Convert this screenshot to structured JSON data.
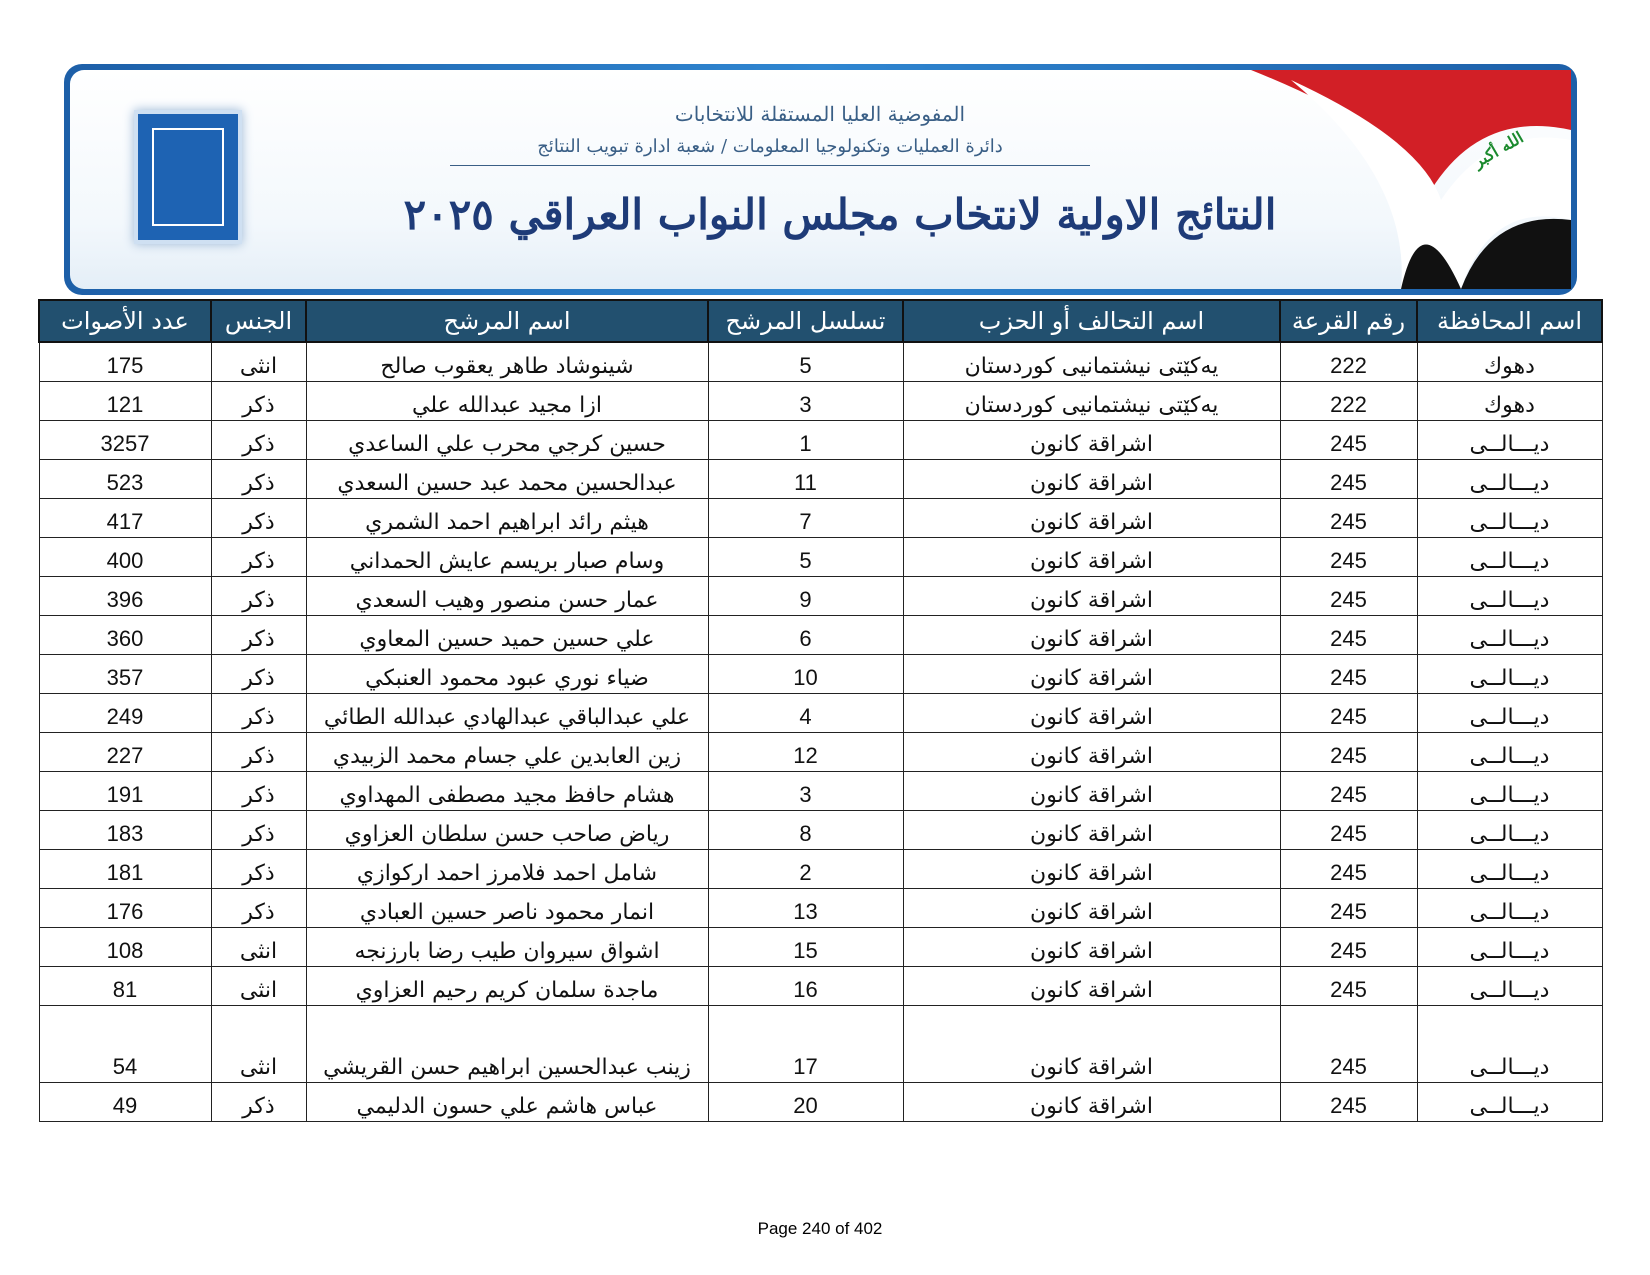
{
  "header": {
    "line1": "المفوضية العليا المستقلة للانتخابات",
    "line2": "دائرة العمليات وتكنولوجيا المعلومات / شعبة ادارة تبويب النتائج",
    "title": "النتائج الاولية لانتخاب مجلس النواب العراقي ٢٠٢٥",
    "flag_text": "الله أكبر"
  },
  "table": {
    "columns": [
      "اسم المحافظة",
      "رقم القرعة",
      "اسم التحالف أو الحزب",
      "تسلسل المرشح",
      "اسم المرشح",
      "الجنس",
      "عدد الأصوات"
    ],
    "rows": [
      [
        "دهوك",
        222,
        "يەكێتی نیشتمانیی كوردستان",
        5,
        "شينوشاد طاهر يعقوب صالح",
        "انثى",
        175
      ],
      [
        "دهوك",
        222,
        "يەكێتی نیشتمانیی كوردستان",
        3,
        "ازا مجيد عبدالله علي",
        "ذكر",
        121
      ],
      [
        "ديـــالــى",
        245,
        "اشراقة كانون",
        1,
        "حسين كرجي محرب علي الساعدي",
        "ذكر",
        3257
      ],
      [
        "ديـــالــى",
        245,
        "اشراقة كانون",
        11,
        "عبدالحسين محمد عبد حسين السعدي",
        "ذكر",
        523
      ],
      [
        "ديـــالــى",
        245,
        "اشراقة كانون",
        7,
        "هيثم رائد ابراهيم احمد الشمري",
        "ذكر",
        417
      ],
      [
        "ديـــالــى",
        245,
        "اشراقة كانون",
        5,
        "وسام صبار بريسم عايش الحمداني",
        "ذكر",
        400
      ],
      [
        "ديـــالــى",
        245,
        "اشراقة كانون",
        9,
        "عمار حسن منصور وهيب السعدي",
        "ذكر",
        396
      ],
      [
        "ديـــالــى",
        245,
        "اشراقة كانون",
        6,
        "علي حسين حميد حسين المعاوي",
        "ذكر",
        360
      ],
      [
        "ديـــالــى",
        245,
        "اشراقة كانون",
        10,
        "ضياء نوري عبود محمود العنبكي",
        "ذكر",
        357
      ],
      [
        "ديـــالــى",
        245,
        "اشراقة كانون",
        4,
        "علي عبدالباقي عبدالهادي عبدالله الطائي",
        "ذكر",
        249
      ],
      [
        "ديـــالــى",
        245,
        "اشراقة كانون",
        12,
        "زين العابدين علي جسام محمد الزبيدي",
        "ذكر",
        227
      ],
      [
        "ديـــالــى",
        245,
        "اشراقة كانون",
        3,
        "هشام حافظ مجيد مصطفى المهداوي",
        "ذكر",
        191
      ],
      [
        "ديـــالــى",
        245,
        "اشراقة كانون",
        8,
        "رياض صاحب حسن سلطان العزاوي",
        "ذكر",
        183
      ],
      [
        "ديـــالــى",
        245,
        "اشراقة كانون",
        2,
        "شامل احمد فلامرز احمد اركوازي",
        "ذكر",
        181
      ],
      [
        "ديـــالــى",
        245,
        "اشراقة كانون",
        13,
        "انمار محمود ناصر حسين العبادي",
        "ذكر",
        176
      ],
      [
        "ديـــالــى",
        245,
        "اشراقة كانون",
        15,
        "اشواق سيروان طيب رضا بارزنجه",
        "انثى",
        108
      ],
      [
        "ديـــالــى",
        245,
        "اشراقة كانون",
        16,
        "ماجدة سلمان كريم رحيم العزاوي",
        "انثى",
        81
      ],
      [
        "ديـــالــى",
        245,
        "اشراقة كانون",
        17,
        "زينب عبدالحسين ابراهيم حسن القريشي",
        "انثى",
        54
      ],
      [
        "ديـــالــى",
        245,
        "اشراقة كانون",
        20,
        "عباس هاشم علي حسون الدليمي",
        "ذكر",
        49
      ]
    ]
  },
  "footer": {
    "page": "Page 240 of 402"
  }
}
